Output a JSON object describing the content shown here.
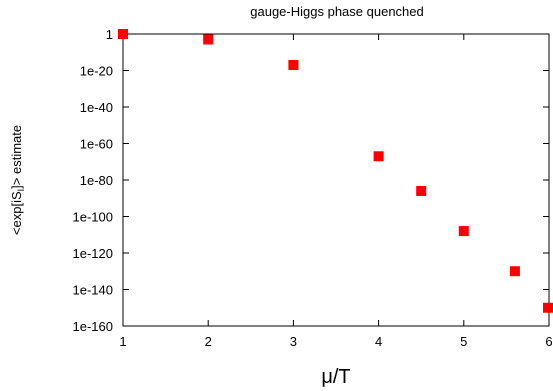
{
  "chart_data": {
    "type": "scatter",
    "title": "gauge-Higgs phase quenched",
    "xlabel": "μ/T",
    "ylabel": "<exp[iS_I]> estimate",
    "ylabel_main": "<exp[iS",
    "ylabel_sub": "I",
    "ylabel_tail": "]> estimate",
    "x_scale": "linear",
    "y_scale": "log",
    "xlim": [
      1,
      6
    ],
    "ylim": [
      "1e-160",
      "1"
    ],
    "x_ticks": [
      1,
      2,
      3,
      4,
      5,
      6
    ],
    "x_tick_labels": [
      "1",
      "2",
      "3",
      "4",
      "5",
      "6"
    ],
    "y_ticks_exp": [
      0,
      -20,
      -40,
      -60,
      -80,
      -100,
      -120,
      -140,
      -160
    ],
    "y_tick_labels": [
      "1",
      "1e-20",
      "1e-40",
      "1e-60",
      "1e-80",
      "1e-100",
      "1e-120",
      "1e-140",
      "1e-160"
    ],
    "grid": false,
    "legend": "none",
    "marker": "square",
    "marker_color": "#ff0000",
    "points": [
      {
        "x": 1.0,
        "y": "1"
      },
      {
        "x": 2.0,
        "y": "1e-3"
      },
      {
        "x": 3.0,
        "y": "1e-17"
      },
      {
        "x": 4.0,
        "y": "1e-67"
      },
      {
        "x": 4.5,
        "y": "1e-86"
      },
      {
        "x": 5.0,
        "y": "1e-108"
      },
      {
        "x": 5.6,
        "y": "1e-130"
      },
      {
        "x": 6.0,
        "y": "1e-150"
      }
    ]
  }
}
